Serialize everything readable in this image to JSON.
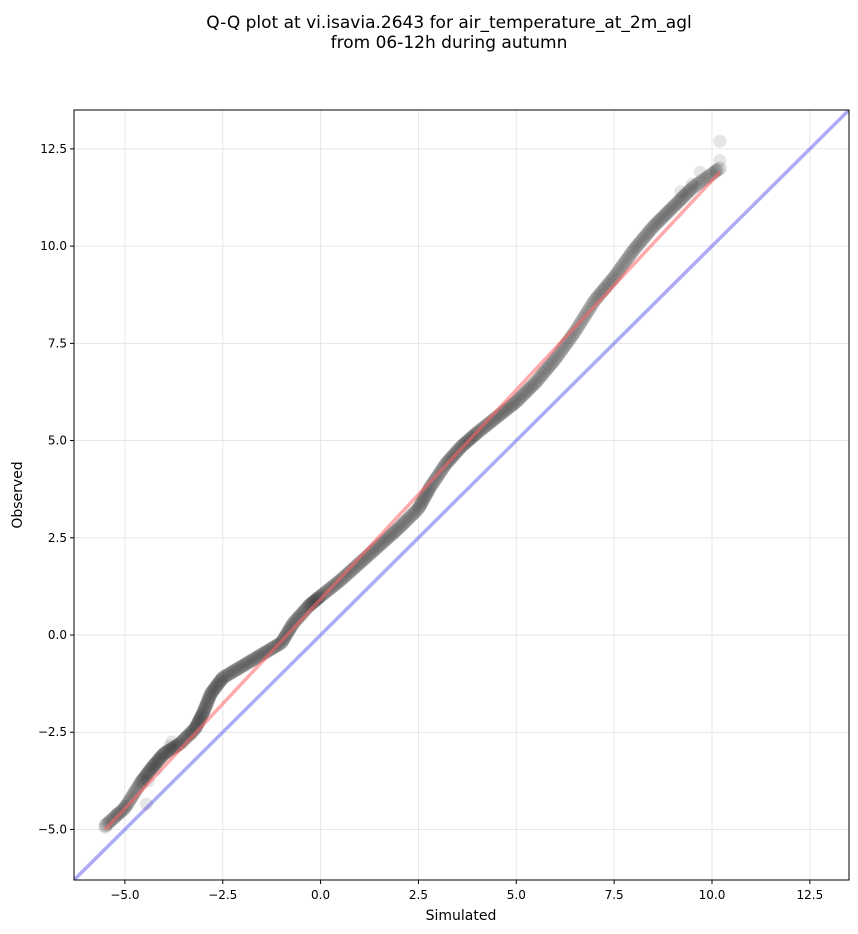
{
  "chart_data": {
    "type": "scatter",
    "title_line1": "Q-Q plot at vi.isavia.2643 for air_temperature_at_2m_agl",
    "title_line2": "from 06-12h during autumn",
    "xlabel": "Simulated",
    "ylabel": "Observed",
    "xlim": [
      -6.3,
      13.5
    ],
    "ylim": [
      -6.3,
      13.5
    ],
    "xticks": [
      -5.0,
      -2.5,
      0.0,
      2.5,
      5.0,
      7.5,
      10.0,
      12.5
    ],
    "yticks": [
      -5.0,
      -2.5,
      0.0,
      2.5,
      5.0,
      7.5,
      10.0,
      12.5
    ],
    "xtick_labels": [
      "−5.0",
      "−2.5",
      "0.0",
      "2.5",
      "5.0",
      "7.5",
      "10.0",
      "12.5"
    ],
    "ytick_labels": [
      "−5.0",
      "−2.5",
      "0.0",
      "2.5",
      "5.0",
      "7.5",
      "10.0",
      "12.5"
    ],
    "grid": true,
    "colors": {
      "points": "#333333",
      "fit_line": "#ff6666",
      "identity_line": "#6666ee",
      "grid": "#e6e6e6"
    },
    "identity_line": {
      "x": [
        -6.3,
        13.5
      ],
      "y": [
        -6.3,
        13.5
      ]
    },
    "fit_line": {
      "x": [
        -5.5,
        10.2
      ],
      "y": [
        -5.0,
        11.9
      ]
    },
    "quantile_curve": [
      [
        -5.5,
        -4.9
      ],
      [
        -5.0,
        -4.45
      ],
      [
        -4.6,
        -3.8
      ],
      [
        -4.3,
        -3.4
      ],
      [
        -4.0,
        -3.05
      ],
      [
        -3.6,
        -2.8
      ],
      [
        -3.2,
        -2.4
      ],
      [
        -3.0,
        -2.0
      ],
      [
        -2.8,
        -1.5
      ],
      [
        -2.5,
        -1.1
      ],
      [
        -2.0,
        -0.8
      ],
      [
        -1.5,
        -0.5
      ],
      [
        -1.0,
        -0.2
      ],
      [
        -0.7,
        0.3
      ],
      [
        -0.3,
        0.75
      ],
      [
        0.0,
        1.0
      ],
      [
        0.5,
        1.4
      ],
      [
        1.0,
        1.85
      ],
      [
        1.5,
        2.3
      ],
      [
        2.0,
        2.75
      ],
      [
        2.5,
        3.25
      ],
      [
        2.8,
        3.8
      ],
      [
        3.2,
        4.4
      ],
      [
        3.6,
        4.85
      ],
      [
        4.0,
        5.2
      ],
      [
        4.5,
        5.6
      ],
      [
        5.0,
        6.0
      ],
      [
        5.5,
        6.5
      ],
      [
        6.0,
        7.1
      ],
      [
        6.5,
        7.8
      ],
      [
        7.0,
        8.6
      ],
      [
        7.5,
        9.2
      ],
      [
        8.0,
        9.9
      ],
      [
        8.5,
        10.5
      ],
      [
        9.0,
        11.0
      ],
      [
        9.5,
        11.5
      ],
      [
        10.2,
        12.0
      ]
    ],
    "tail_points": [
      [
        -5.5,
        -4.95
      ],
      [
        -5.2,
        -4.6
      ],
      [
        -5.0,
        -4.4
      ],
      [
        -4.45,
        -4.35
      ],
      [
        -4.4,
        -3.75
      ],
      [
        -4.2,
        -3.45
      ],
      [
        -3.85,
        -2.85
      ],
      [
        -3.8,
        -2.75
      ],
      [
        -3.3,
        -2.55
      ],
      [
        9.2,
        11.4
      ],
      [
        9.5,
        11.6
      ],
      [
        9.7,
        11.9
      ],
      [
        10.1,
        11.95
      ],
      [
        10.2,
        12.2
      ],
      [
        10.2,
        12.7
      ]
    ]
  }
}
